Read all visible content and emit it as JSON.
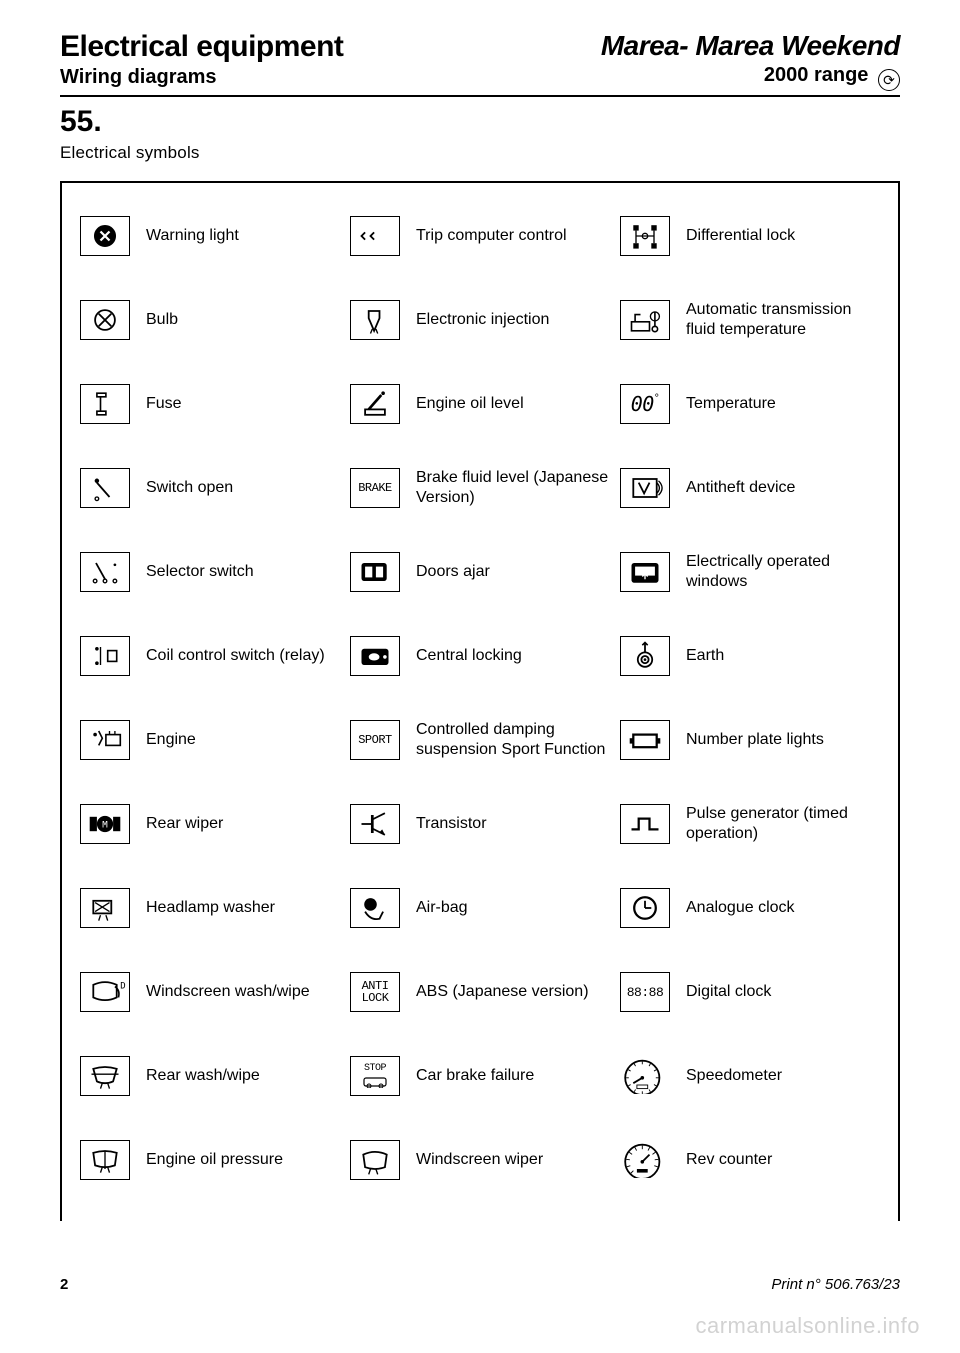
{
  "header": {
    "title": "Electrical equipment",
    "subtitle": "Wiring diagrams",
    "model": "Marea- Marea Weekend",
    "range": "2000 range"
  },
  "section": {
    "number": "55.",
    "title": "Electrical symbols"
  },
  "symbols": [
    [
      {
        "icon": "warning-light",
        "label": "Warning light"
      },
      {
        "icon": "trip-computer",
        "label": "Trip computer control"
      },
      {
        "icon": "diff-lock",
        "label": "Differential lock"
      }
    ],
    [
      {
        "icon": "bulb",
        "label": "Bulb"
      },
      {
        "icon": "electronic-injection",
        "label": "Electronic injection"
      },
      {
        "icon": "auto-trans-fluid",
        "label": "Automatic transmission fluid temperature"
      }
    ],
    [
      {
        "icon": "fuse",
        "label": "Fuse"
      },
      {
        "icon": "engine-oil-level",
        "label": "Engine oil level"
      },
      {
        "icon": "temperature",
        "label": "Temperature",
        "text": "00°"
      }
    ],
    [
      {
        "icon": "switch-open",
        "label": "Switch open"
      },
      {
        "icon": "brake",
        "label": "Brake fluid level (Japanese Version)",
        "text": "BRAKE"
      },
      {
        "icon": "antitheft",
        "label": "Antitheft device"
      }
    ],
    [
      {
        "icon": "selector-switch",
        "label": "Selector switch"
      },
      {
        "icon": "doors-ajar",
        "label": "Doors ajar"
      },
      {
        "icon": "power-windows",
        "label": "Electrically operated windows"
      }
    ],
    [
      {
        "icon": "coil-relay",
        "label": "Coil control switch (relay)"
      },
      {
        "icon": "central-locking",
        "label": "Central locking"
      },
      {
        "icon": "earth",
        "label": "Earth"
      }
    ],
    [
      {
        "icon": "engine",
        "label": "Engine"
      },
      {
        "icon": "sport",
        "label": "Controlled damping suspension Sport Function",
        "text": "SPORT"
      },
      {
        "icon": "number-plate",
        "label": "Number plate lights"
      }
    ],
    [
      {
        "icon": "rear-wiper",
        "label": "Rear wiper"
      },
      {
        "icon": "transistor",
        "label": "Transistor"
      },
      {
        "icon": "pulse-gen",
        "label": "Pulse generator (timed operation)"
      }
    ],
    [
      {
        "icon": "headlamp-washer",
        "label": "Headlamp washer"
      },
      {
        "icon": "airbag",
        "label": "Air-bag"
      },
      {
        "icon": "analogue-clock",
        "label": "Analogue clock"
      }
    ],
    [
      {
        "icon": "windscreen-wash",
        "label": "Windscreen wash/wipe"
      },
      {
        "icon": "anti-lock",
        "label": "ABS (Japanese version)",
        "text": "ANTI LOCK"
      },
      {
        "icon": "digital-clock",
        "label": "Digital clock",
        "text": "88:88"
      }
    ],
    [
      {
        "icon": "rear-wash",
        "label": "Rear wash/wipe"
      },
      {
        "icon": "car-brake-fail",
        "label": "Car brake failure",
        "text": "STOP"
      },
      {
        "icon": "speedometer",
        "label": "Speedometer",
        "round": true
      }
    ],
    [
      {
        "icon": "oil-pressure",
        "label": "Engine oil pressure"
      },
      {
        "icon": "windscreen-wiper",
        "label": "Windscreen wiper"
      },
      {
        "icon": "rev-counter",
        "label": "Rev counter",
        "round": true
      }
    ]
  ],
  "footer": {
    "page": "2",
    "print": "Print n° 506.763/23"
  },
  "watermark": "carmanualsonline.info",
  "colors": {
    "text": "#000000",
    "bg": "#ffffff",
    "watermark": "#d2d2d2"
  }
}
